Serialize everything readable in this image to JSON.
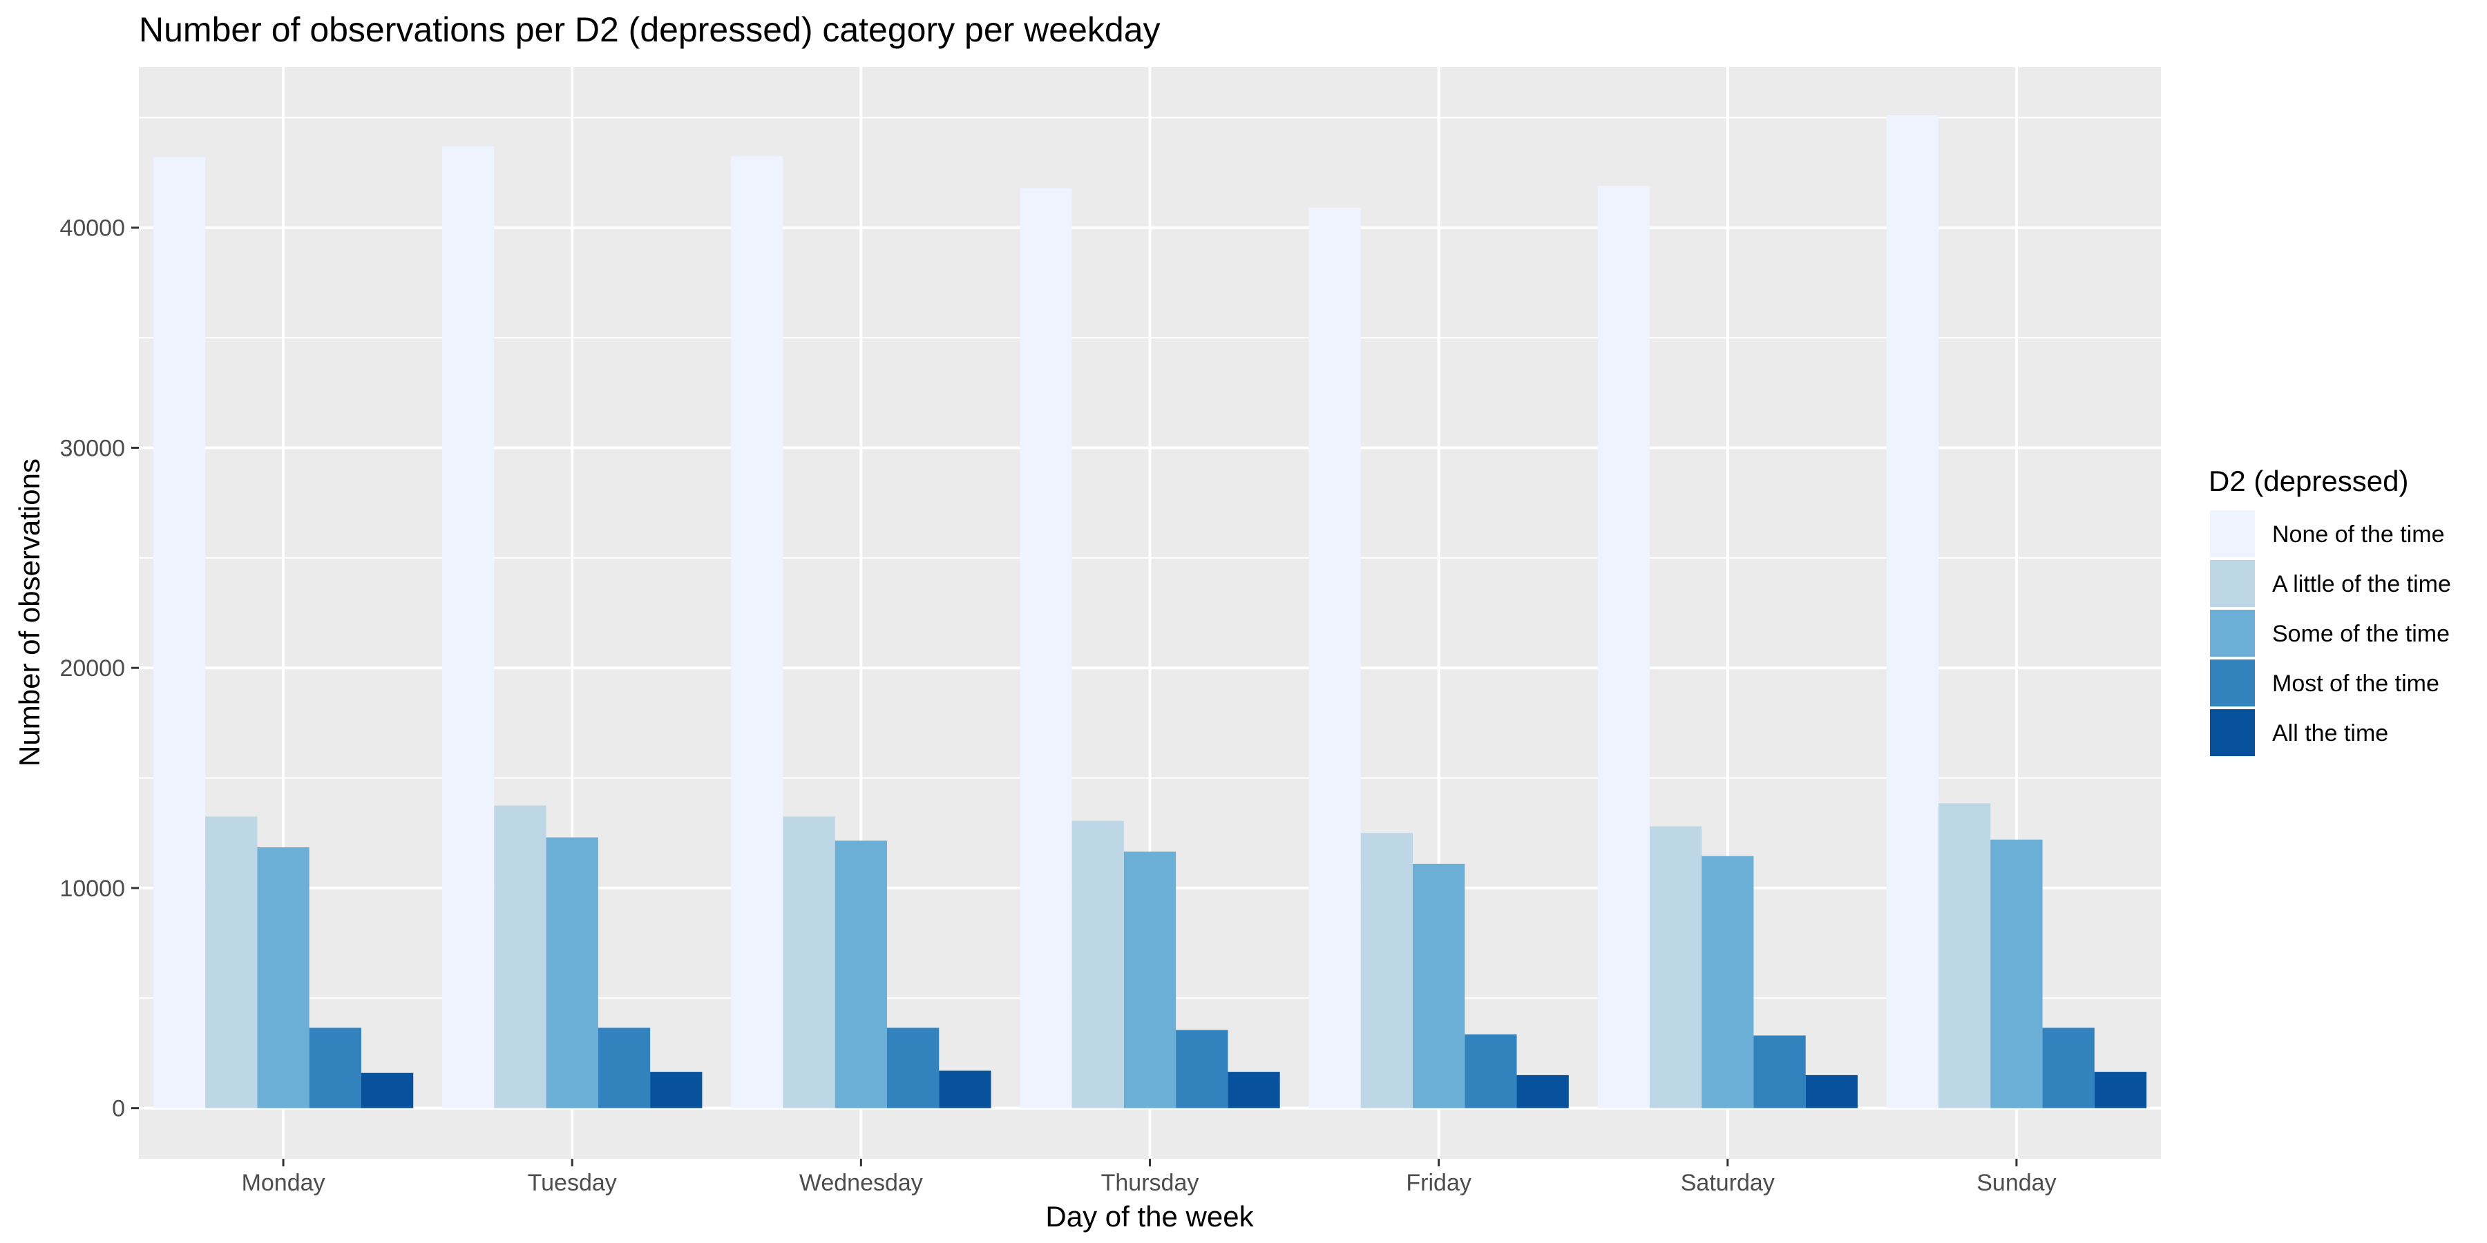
{
  "chart_data": {
    "type": "bar",
    "title": "Number of observations per D2 (depressed) category per weekday",
    "xlabel": "Day of the week",
    "ylabel": "Number of observations",
    "categories": [
      "Monday",
      "Tuesday",
      "Wednesday",
      "Thursday",
      "Friday",
      "Saturday",
      "Sunday"
    ],
    "ylim": [
      -2300,
      47300
    ],
    "yticks": [
      0,
      10000,
      20000,
      30000,
      40000
    ],
    "ytick_labels": [
      "0",
      "10000",
      "20000",
      "30000",
      "40000"
    ],
    "grid": true,
    "legend": {
      "title": "D2 (depressed)",
      "position": "right"
    },
    "series": [
      {
        "name": "None of the time",
        "color": "#eff3ff",
        "values": [
          43200,
          43700,
          43250,
          41800,
          40900,
          41900,
          45100
        ]
      },
      {
        "name": "A little of the time",
        "color": "#bdd7e7",
        "values": [
          13250,
          13750,
          13250,
          13050,
          12500,
          12800,
          13850
        ]
      },
      {
        "name": "Some of the time",
        "color": "#6baed6",
        "values": [
          11850,
          12300,
          12150,
          11650,
          11100,
          11450,
          12200
        ]
      },
      {
        "name": "Most of the time",
        "color": "#3182bd",
        "values": [
          3650,
          3650,
          3650,
          3550,
          3350,
          3300,
          3650
        ]
      },
      {
        "name": "All the time",
        "color": "#08519c",
        "values": [
          1600,
          1650,
          1700,
          1650,
          1500,
          1500,
          1650
        ]
      }
    ]
  }
}
